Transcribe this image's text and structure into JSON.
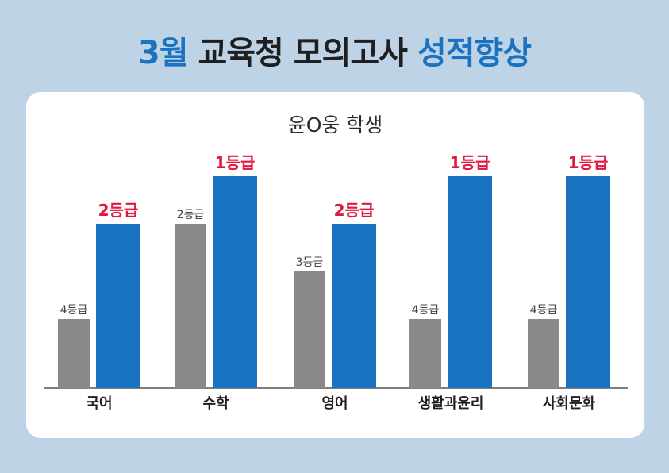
{
  "title": {
    "part1": "3월",
    "part2": " 교육청 모의고사 ",
    "part3": "성적향상"
  },
  "chart_data": {
    "type": "bar",
    "title": "3월 교육청 모의고사 성적향상",
    "subtitle": "윤O웅 학생",
    "categories": [
      "국어",
      "수학",
      "영어",
      "생활과윤리",
      "사회문화"
    ],
    "y_direction": "grade (lower number = higher bar)",
    "ylim": [
      5,
      1
    ],
    "series": [
      {
        "values": [
          4,
          2,
          3,
          4,
          4
        ],
        "labels": [
          "4등급",
          "2등급",
          "3등급",
          "4등급",
          "4등급"
        ],
        "color": "#8a8a8a"
      },
      {
        "values": [
          2,
          1,
          2,
          1,
          1
        ],
        "labels": [
          "2등급",
          "1등급",
          "2등급",
          "1등급",
          "1등급"
        ],
        "color": "#1a73c0"
      }
    ],
    "label_color": "#e3163e",
    "grid": false,
    "legend": "none"
  }
}
